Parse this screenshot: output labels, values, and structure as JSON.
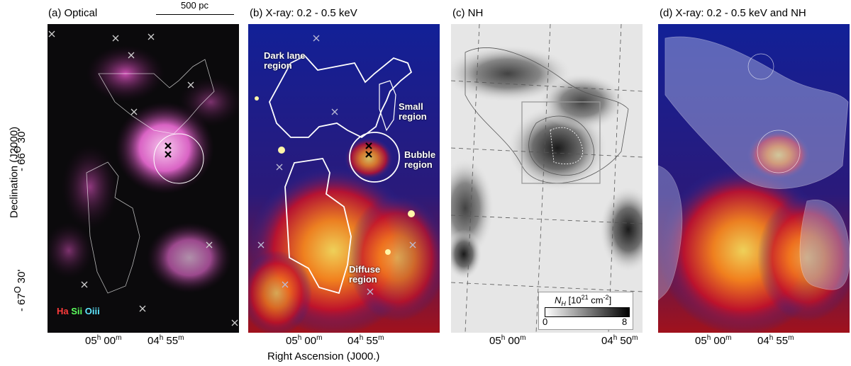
{
  "panels": {
    "a": {
      "title": "(a) Optical"
    },
    "b": {
      "title": "(b) X-ray: 0.2 - 0.5 keV"
    },
    "c": {
      "title": "(c) NH"
    },
    "d": {
      "title": "(d) X-ray: 0.2 - 0.5 keV and NH"
    }
  },
  "scale_bar": {
    "label": "500 pc"
  },
  "regions": {
    "dark_lane": [
      "Dark lane",
      "region"
    ],
    "small": [
      "Small",
      "region"
    ],
    "bubble": [
      "Bubble",
      "region"
    ],
    "diffuse": [
      "Diffuse",
      "region"
    ]
  },
  "legend": {
    "ha": "Ha",
    "sii": "Sii",
    "oiii": "Oiii"
  },
  "axes": {
    "ylabel": "Declination (J2000)",
    "xlabel": "Right Ascension (J000.)",
    "yticks": [
      {
        "deg": "- 66",
        "sup": "O",
        "min": " 30'"
      },
      {
        "deg": "- 67",
        "sup": "O",
        "min": " 30'"
      }
    ],
    "xticks": [
      {
        "h": "05",
        "hs": "h",
        "m": " 00",
        "ms": "m"
      },
      {
        "h": "04",
        "hs": "h",
        "m": " 55",
        "ms": "m"
      },
      {
        "h": "04",
        "hs": "h",
        "m": " 50",
        "ms": "m"
      }
    ]
  },
  "colorbar": {
    "title_n": "N",
    "title_sub": "H",
    "title_rest": " [10",
    "title_exp": "21",
    "title_end": " cm",
    "title_exp2": "-2",
    "title_close": "]",
    "min": "0",
    "max": "8"
  },
  "colors": {
    "xray_low": "#1a2a9a",
    "xray_high": "#ffd23c",
    "optical_bg": "#0a0a0a",
    "nebula": "#e06ad0",
    "contour": "#ffffff"
  }
}
